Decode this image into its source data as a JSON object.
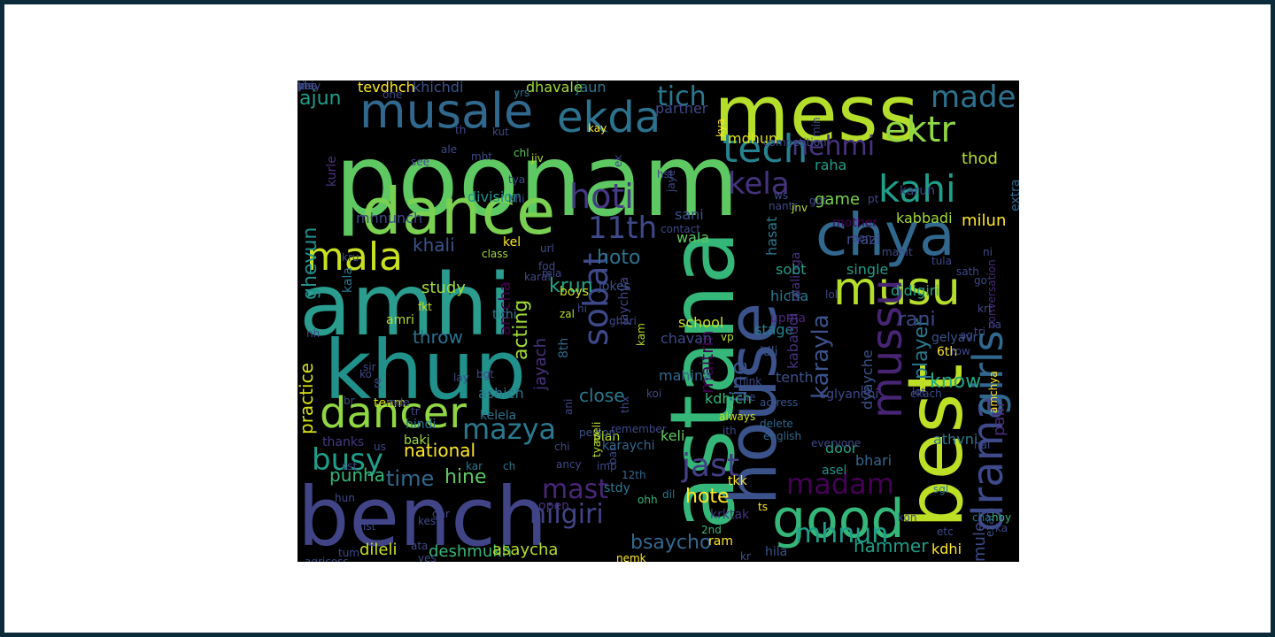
{
  "words": [
    {
      "text": "poonam",
      "color": "#5ec962"
    },
    {
      "text": "amhi",
      "color": "#2a9d8f"
    },
    {
      "text": "khup",
      "color": "#21918c"
    },
    {
      "text": "bench",
      "color": "#414487"
    },
    {
      "text": "dance",
      "color": "#7ad151"
    },
    {
      "text": "mess",
      "color": "#b5de2b"
    },
    {
      "text": "astana",
      "color": "#35b779"
    },
    {
      "text": "house",
      "color": "#3b528b"
    },
    {
      "text": "best",
      "color": "#bddf26"
    },
    {
      "text": "chya",
      "color": "#31688e"
    },
    {
      "text": "musale",
      "color": "#31688e"
    },
    {
      "text": "ekda",
      "color": "#2c728e"
    },
    {
      "text": "musu",
      "color": "#b5de2b"
    },
    {
      "text": "good",
      "color": "#35b779"
    },
    {
      "text": "dancer",
      "color": "#90d743"
    },
    {
      "text": "mussu",
      "color": "#482475"
    },
    {
      "text": "drama",
      "color": "#3e4989"
    },
    {
      "text": "girls",
      "color": "#31688e"
    },
    {
      "text": "mala",
      "color": "#c8e020"
    },
    {
      "text": "tech",
      "color": "#26828e"
    },
    {
      "text": "kahi",
      "color": "#1f9e89"
    },
    {
      "text": "ektr",
      "color": "#90d743"
    },
    {
      "text": "made",
      "color": "#2c728e"
    },
    {
      "text": "nehmi",
      "color": "#46327e"
    },
    {
      "text": "hoti",
      "color": "#443983"
    },
    {
      "text": "11th",
      "color": "#3e4989"
    },
    {
      "text": "kela",
      "color": "#46337e"
    },
    {
      "text": "tich",
      "color": "#2a788e"
    },
    {
      "text": "mazya",
      "color": "#2a788e"
    },
    {
      "text": "busy",
      "color": "#1f9e89"
    },
    {
      "text": "madam",
      "color": "#440154"
    },
    {
      "text": "jast",
      "color": "#433e85"
    },
    {
      "text": "mast",
      "color": "#482677"
    },
    {
      "text": "sobat",
      "color": "#3e4989"
    },
    {
      "text": "nilgiri",
      "color": "#414487"
    },
    {
      "text": "mhnun",
      "color": "#1f9e89"
    },
    {
      "text": "acting",
      "color": "#a0da39"
    },
    {
      "text": "ghevun",
      "color": "#21918c"
    },
    {
      "text": "ajun",
      "color": "#1f9e89"
    },
    {
      "text": "practice",
      "color": "#d8e219"
    },
    {
      "text": "time",
      "color": "#31688e"
    },
    {
      "text": "hine",
      "color": "#5ec962"
    },
    {
      "text": "punha",
      "color": "#35b779"
    },
    {
      "text": "national",
      "color": "#fde725"
    },
    {
      "text": "hammer",
      "color": "#1f9e89"
    },
    {
      "text": "bsaycho",
      "color": "#31688e"
    },
    {
      "text": "hote",
      "color": "#fde725"
    },
    {
      "text": "krun",
      "color": "#20a486"
    },
    {
      "text": "hoto",
      "color": "#2c728e"
    },
    {
      "text": "study",
      "color": "#a0da39"
    },
    {
      "text": "khali",
      "color": "#3b528b"
    },
    {
      "text": "amcha",
      "color": "#440154"
    },
    {
      "text": "jayach",
      "color": "#46327e"
    },
    {
      "text": "close",
      "color": "#2a788e"
    },
    {
      "text": "throw",
      "color": "#2c728e"
    },
    {
      "text": "line",
      "color": "#39568c"
    },
    {
      "text": "maitrin",
      "color": "#440154"
    },
    {
      "text": "karayla",
      "color": "#3b528b"
    },
    {
      "text": "player",
      "color": "#2a788e"
    },
    {
      "text": "rani",
      "color": "#3e4989"
    },
    {
      "text": "know",
      "color": "#22a884"
    },
    {
      "text": "palli",
      "color": "#472c7a"
    },
    {
      "text": "dileli",
      "color": "#c8e020"
    },
    {
      "text": "deshmukh",
      "color": "#35b779"
    },
    {
      "text": "asaycha",
      "color": "#b5de2b"
    },
    {
      "text": "kdhi",
      "color": "#fde725"
    },
    {
      "text": "mule",
      "color": "#3e4989"
    },
    {
      "text": "division",
      "color": "#21918c"
    },
    {
      "text": "mhnunch",
      "color": "#3e4989"
    },
    {
      "text": "tevdhch",
      "color": "#fde725"
    },
    {
      "text": "khichdi",
      "color": "#3b528b"
    },
    {
      "text": "dhavale",
      "color": "#a0da39"
    },
    {
      "text": "jaun",
      "color": "#2a788e"
    },
    {
      "text": "partner",
      "color": "#3e4989"
    },
    {
      "text": "mdhun",
      "color": "#d8e219"
    },
    {
      "text": "raha",
      "color": "#1f9e89"
    },
    {
      "text": "thod",
      "color": "#b5de2b"
    },
    {
      "text": "game",
      "color": "#7ad151"
    },
    {
      "text": "sani",
      "color": "#3b528b"
    },
    {
      "text": "wala",
      "color": "#5ec962"
    },
    {
      "text": "hasat",
      "color": "#2a788e"
    },
    {
      "text": "mother",
      "color": "#440154"
    },
    {
      "text": "mazi",
      "color": "#3e4989"
    },
    {
      "text": "kabbadi",
      "color": "#a0da39"
    },
    {
      "text": "milun",
      "color": "#fde725"
    },
    {
      "text": "karun",
      "color": "#414487"
    },
    {
      "text": "extra",
      "color": "#31688e"
    },
    {
      "text": "single",
      "color": "#1f9e89"
    },
    {
      "text": "didigiri",
      "color": "#22a884"
    },
    {
      "text": "malinga",
      "color": "#46327e"
    },
    {
      "text": "sobt",
      "color": "#1f9e89"
    },
    {
      "text": "hicha",
      "color": "#2a788e"
    },
    {
      "text": "upma",
      "color": "#482475"
    },
    {
      "text": "stage",
      "color": "#26828e"
    },
    {
      "text": "idli",
      "color": "#3b528b"
    },
    {
      "text": "tenth",
      "color": "#3b528b"
    },
    {
      "text": "kabaddi",
      "color": "#46327e"
    },
    {
      "text": "dyayche",
      "color": "#3b528b"
    },
    {
      "text": "sglyanchi",
      "color": "#3e4989"
    },
    {
      "text": "kdhich",
      "color": "#35b779"
    },
    {
      "text": "keli",
      "color": "#5ec962"
    },
    {
      "text": "door",
      "color": "#20a486"
    },
    {
      "text": "bhari",
      "color": "#31688e"
    },
    {
      "text": "athvni",
      "color": "#2a788e"
    },
    {
      "text": "asel",
      "color": "#21918c"
    },
    {
      "text": "school",
      "color": "#c8e020"
    },
    {
      "text": "chavan",
      "color": "#3e4989"
    },
    {
      "text": "mahina",
      "color": "#31688e"
    },
    {
      "text": "jokes",
      "color": "#3b528b"
    },
    {
      "text": "boys",
      "color": "#c8e020"
    },
    {
      "text": "jaychya",
      "color": "#414487"
    },
    {
      "text": "ashich",
      "color": "#2a788e"
    },
    {
      "text": "kelela",
      "color": "#2c728e"
    },
    {
      "text": "hindi",
      "color": "#2a788e"
    },
    {
      "text": "baki",
      "color": "#a0da39"
    },
    {
      "text": "thanks",
      "color": "#443983"
    },
    {
      "text": "team",
      "color": "#d8e219"
    },
    {
      "text": "amri",
      "color": "#b5de2b"
    },
    {
      "text": "kala",
      "color": "#2a788e"
    },
    {
      "text": "kurle",
      "color": "#46327e"
    },
    {
      "text": "karaychi",
      "color": "#31688e"
    },
    {
      "text": "stdy",
      "color": "#2a788e"
    },
    {
      "text": "plan",
      "color": "#b5de2b"
    },
    {
      "text": "open",
      "color": "#46327e"
    },
    {
      "text": "krktak",
      "color": "#46327e"
    },
    {
      "text": "ram",
      "color": "#fde725"
    },
    {
      "text": "hila",
      "color": "#3b528b"
    },
    {
      "text": "exam",
      "color": "#3b528b"
    },
    {
      "text": "conversation",
      "color": "#472c7a"
    },
    {
      "text": "amchya",
      "color": "#fde725"
    },
    {
      "text": "gelyavr",
      "color": "#3b528b"
    },
    {
      "text": "6th",
      "color": "#fde725"
    },
    {
      "text": "8th",
      "color": "#31688e"
    },
    {
      "text": "tithi",
      "color": "#2a788e"
    },
    {
      "text": "fkt",
      "color": "#c8e020"
    },
    {
      "text": "kel",
      "color": "#fde725"
    },
    {
      "text": "class",
      "color": "#a0da39"
    },
    {
      "text": "tkk",
      "color": "#fde725"
    },
    {
      "text": "always",
      "color": "#c8e020"
    },
    {
      "text": "actress",
      "color": "#3b528b"
    },
    {
      "text": "delete",
      "color": "#31688e"
    },
    {
      "text": "english",
      "color": "#31688e"
    },
    {
      "text": "everyone",
      "color": "#3e4989"
    },
    {
      "text": "sgl",
      "color": "#2a788e"
    },
    {
      "text": "hoy",
      "color": "#35b779"
    },
    {
      "text": "cha",
      "color": "#2a788e"
    },
    {
      "text": "kon",
      "color": "#3e4989"
    },
    {
      "text": "ts",
      "color": "#fde725"
    },
    {
      "text": "ohh",
      "color": "#35b779"
    },
    {
      "text": "dil",
      "color": "#2a788e"
    },
    {
      "text": "2nd",
      "color": "#35b779"
    },
    {
      "text": "kr",
      "color": "#3b528b"
    },
    {
      "text": "nemk",
      "color": "#fde725"
    },
    {
      "text": "agricoss",
      "color": "#3e4989"
    },
    {
      "text": "lst",
      "color": "#3e4989"
    },
    {
      "text": "tum",
      "color": "#3e4989"
    },
    {
      "text": "hun",
      "color": "#3e4989"
    },
    {
      "text": "sst",
      "color": "#3e4989"
    },
    {
      "text": "kar",
      "color": "#2a788e"
    },
    {
      "text": "ch",
      "color": "#2a788e"
    },
    {
      "text": "us",
      "color": "#3e4989"
    },
    {
      "text": "12th",
      "color": "#31688e"
    },
    {
      "text": "bai",
      "color": "#3e4989"
    },
    {
      "text": "person",
      "color": "#3b528b"
    },
    {
      "text": "imp",
      "color": "#3e4989"
    },
    {
      "text": "tyaveli",
      "color": "#b5de2b"
    },
    {
      "text": "ancy",
      "color": "#3e4989"
    },
    {
      "text": "chi",
      "color": "#3e4989"
    },
    {
      "text": "ani",
      "color": "#3e4989"
    },
    {
      "text": "remember",
      "color": "#3e4989"
    },
    {
      "text": "thx",
      "color": "#3e4989"
    },
    {
      "text": "mde",
      "color": "#3e4989"
    },
    {
      "text": "ko",
      "color": "#3e4989"
    },
    {
      "text": "sir",
      "color": "#3e4989"
    },
    {
      "text": "tr",
      "color": "#3e4989"
    },
    {
      "text": "re",
      "color": "#3e4989"
    },
    {
      "text": "bgt",
      "color": "#3e4989"
    },
    {
      "text": "lay",
      "color": "#3e4989"
    },
    {
      "text": "nh",
      "color": "#3e4989"
    },
    {
      "text": "kru",
      "color": "#3e4989"
    },
    {
      "text": "one",
      "color": "#3e4989"
    },
    {
      "text": "yrs",
      "color": "#2a788e"
    },
    {
      "text": "ale",
      "color": "#3e4989"
    },
    {
      "text": "th",
      "color": "#3e4989"
    },
    {
      "text": "kut",
      "color": "#3e4989"
    },
    {
      "text": "mht",
      "color": "#3e4989"
    },
    {
      "text": "see",
      "color": "#3e4989"
    },
    {
      "text": "chl",
      "color": "#5ec962"
    },
    {
      "text": "jiv",
      "color": "#b5de2b"
    },
    {
      "text": "tya",
      "color": "#3e4989"
    },
    {
      "text": "bhi",
      "color": "#3e4989"
    },
    {
      "text": "ek",
      "color": "#3e4989"
    },
    {
      "text": "kay",
      "color": "#fde725"
    },
    {
      "text": "kya",
      "color": "#fde725"
    },
    {
      "text": "competition",
      "color": "#3e4989"
    },
    {
      "text": "min",
      "color": "#3e4989"
    },
    {
      "text": "nantr",
      "color": "#3e4989"
    },
    {
      "text": "mahit",
      "color": "#3e4989"
    },
    {
      "text": "hst",
      "color": "#3e4989"
    },
    {
      "text": "jaye",
      "color": "#3e4989"
    },
    {
      "text": "contact",
      "color": "#3e4989"
    },
    {
      "text": "url",
      "color": "#3e4989"
    },
    {
      "text": "fod",
      "color": "#3e4989"
    },
    {
      "text": "mla",
      "color": "#3e4989"
    },
    {
      "text": "karat",
      "color": "#3e4989"
    },
    {
      "text": "zal",
      "color": "#b5de2b"
    },
    {
      "text": "hi",
      "color": "#3e4989"
    },
    {
      "text": "ghari",
      "color": "#3e4989"
    },
    {
      "text": "kam",
      "color": "#b5de2b"
    },
    {
      "text": "koi",
      "color": "#3e4989"
    },
    {
      "text": "ws",
      "color": "#3e4989"
    },
    {
      "text": "jnv",
      "color": "#b5de2b"
    },
    {
      "text": "got",
      "color": "#3e4989"
    },
    {
      "text": "pt",
      "color": "#3e4989"
    },
    {
      "text": "ni",
      "color": "#3e4989"
    },
    {
      "text": "tula",
      "color": "#3e4989"
    },
    {
      "text": "sath",
      "color": "#3e4989"
    },
    {
      "text": "ne",
      "color": "#3e4989"
    },
    {
      "text": "lol",
      "color": "#3e4989"
    },
    {
      "text": "vp",
      "color": "#b5de2b"
    },
    {
      "text": "pen",
      "color": "#3e4989"
    },
    {
      "text": "go",
      "color": "#3e4989"
    },
    {
      "text": "krt",
      "color": "#3e4989"
    },
    {
      "text": "tri",
      "color": "#3e4989"
    },
    {
      "text": "row",
      "color": "#3e4989"
    },
    {
      "text": "na",
      "color": "#3e4989"
    },
    {
      "text": "ag",
      "color": "#3e4989"
    },
    {
      "text": "lot",
      "color": "#3e4989"
    },
    {
      "text": "ekach",
      "color": "#3e4989"
    },
    {
      "text": "la",
      "color": "#3e4989"
    },
    {
      "text": "think",
      "color": "#3e4989"
    },
    {
      "text": "che",
      "color": "#3e4989"
    },
    {
      "text": "ith",
      "color": "#3e4989"
    },
    {
      "text": "hai",
      "color": "#3e4989"
    },
    {
      "text": "ka",
      "color": "#3e4989"
    },
    {
      "text": "etc",
      "color": "#3e4989"
    },
    {
      "text": "kes",
      "color": "#3e4989"
    },
    {
      "text": "gar",
      "color": "#3e4989"
    },
    {
      "text": "ata",
      "color": "#3e4989"
    },
    {
      "text": "yes",
      "color": "#3e4989"
    },
    {
      "text": "br",
      "color": "#3e4989"
    },
    {
      "text": "khr",
      "color": "#3e4989"
    },
    {
      "text": "may",
      "color": "#3e4989"
    },
    {
      "text": "ti",
      "color": "#3e4989"
    },
    {
      "text": "pna",
      "color": "#3e4989"
    },
    {
      "text": "nhi",
      "color": "#3e4989"
    },
    {
      "text": "ye",
      "color": "#3e4989"
    }
  ]
}
